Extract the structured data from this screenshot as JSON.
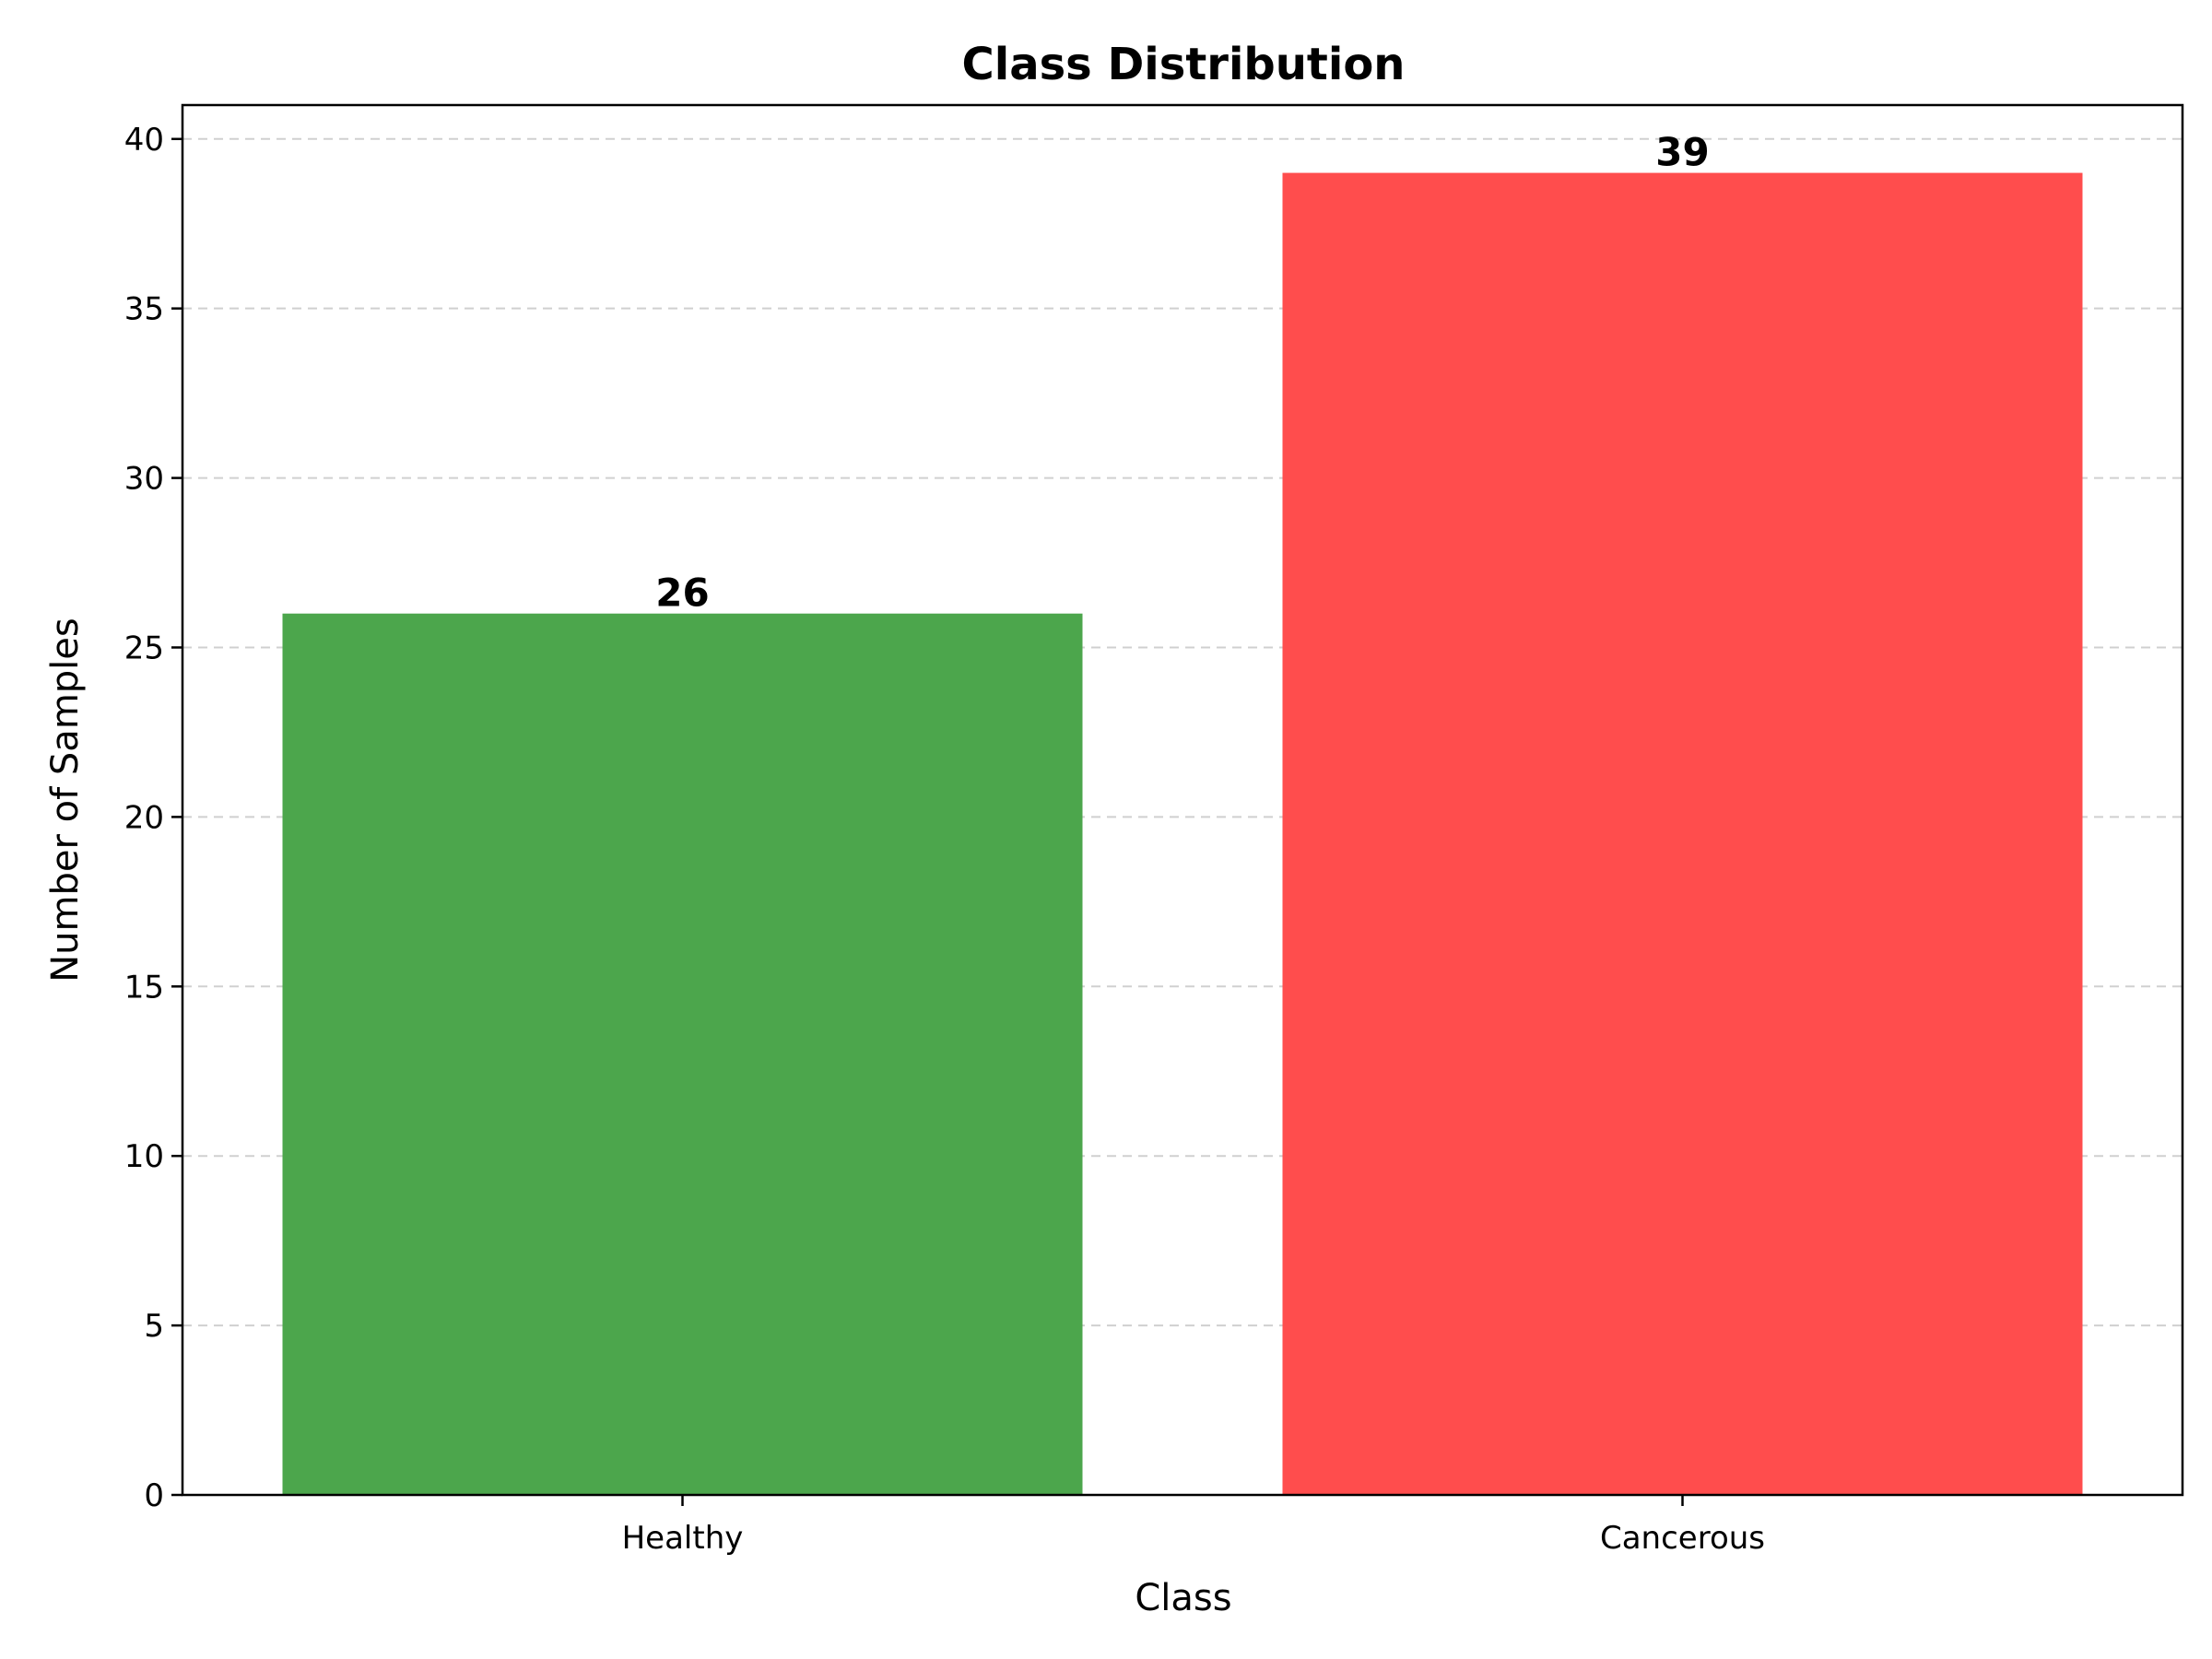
{
  "chart_data": {
    "type": "bar",
    "title": "Class Distribution",
    "xlabel": "Class",
    "ylabel": "Number of Samples",
    "categories": [
      "Healthy",
      "Cancerous"
    ],
    "values": [
      26,
      39
    ],
    "data_labels": [
      "26",
      "39"
    ],
    "bar_colors": [
      "#4ca64c",
      "#ff4d4d"
    ],
    "ylim": [
      0,
      41
    ],
    "yticks": [
      0,
      5,
      10,
      15,
      20,
      25,
      30,
      35,
      40
    ],
    "ytick_labels": [
      "0",
      "5",
      "10",
      "15",
      "20",
      "25",
      "30",
      "35",
      "40"
    ],
    "grid": "y-dashed",
    "legend": "none"
  }
}
